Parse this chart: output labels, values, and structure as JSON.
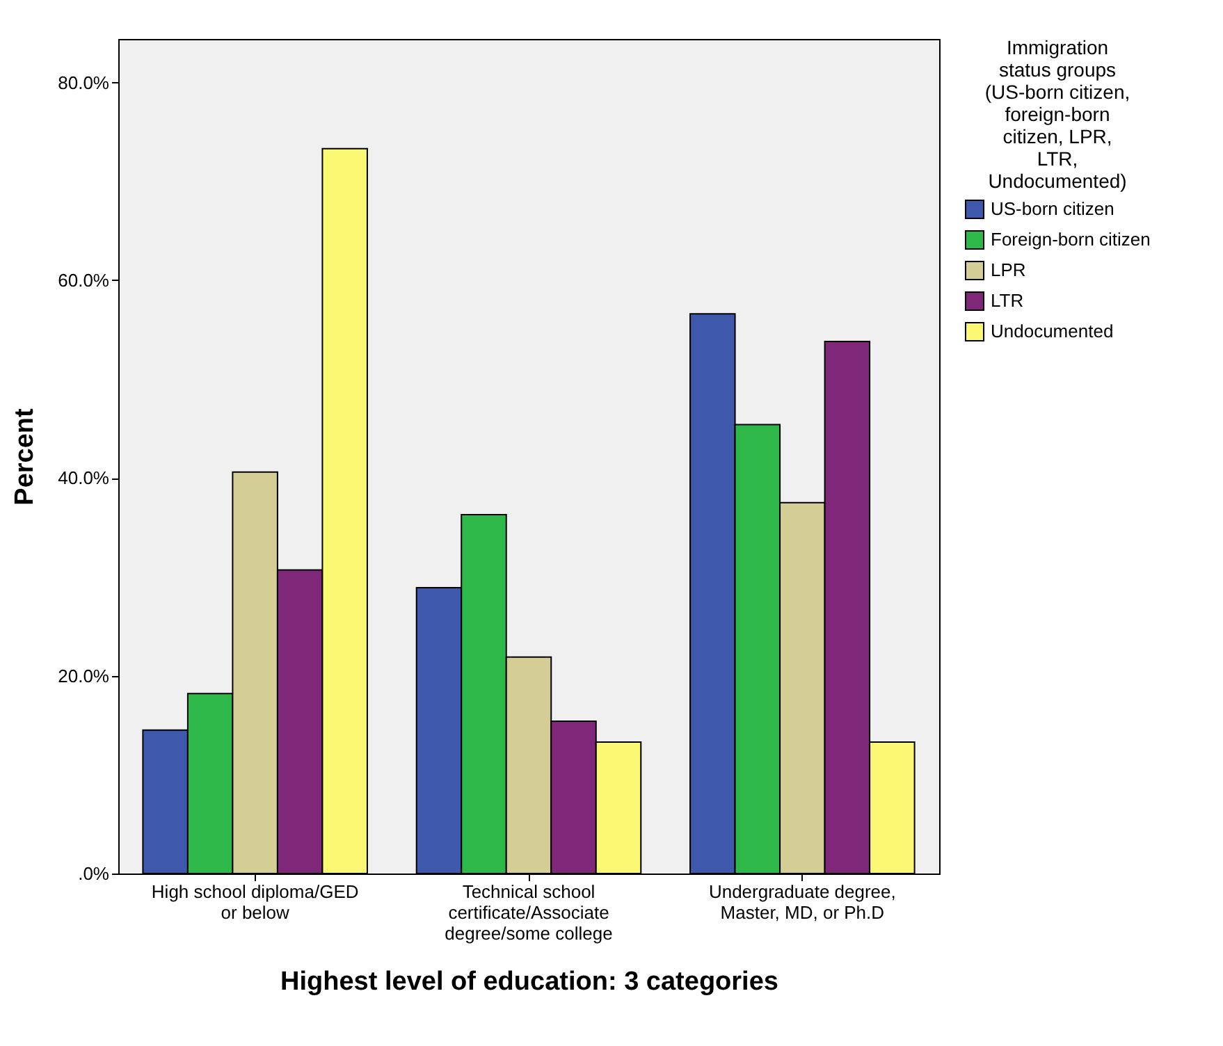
{
  "chart_data": {
    "type": "bar",
    "xlabel": "Highest level of education: 3 categories",
    "ylabel": "Percent",
    "legend_title": "Immigration status groups (US-born citizen, foreign-born citizen, LPR, LTR, Undocumented)",
    "categories": [
      "High school diploma/GED or below",
      "Technical school certificate/Associate degree/some college",
      "Undergraduate degree, Master, MD, or Ph.D"
    ],
    "series": [
      {
        "name": "US-born citizen",
        "color": "#3e58ac",
        "values": [
          14.5,
          28.9,
          56.6
        ]
      },
      {
        "name": "Foreign-born citizen",
        "color": "#2fb84a",
        "values": [
          18.2,
          36.3,
          45.4
        ]
      },
      {
        "name": "LPR",
        "color": "#d4cd96",
        "values": [
          40.6,
          21.9,
          37.5
        ]
      },
      {
        "name": "LTR",
        "color": "#7f2779",
        "values": [
          30.7,
          15.4,
          53.8
        ]
      },
      {
        "name": "Undocumented",
        "color": "#fbf873",
        "values": [
          73.3,
          13.3,
          13.3
        ]
      }
    ],
    "ylim": [
      0,
      84.4
    ],
    "yticks": [
      {
        "value": 0,
        "label": ".0%"
      },
      {
        "value": 20,
        "label": "20.0%"
      },
      {
        "value": 40,
        "label": "40.0%"
      },
      {
        "value": 60,
        "label": "60.0%"
      },
      {
        "value": 80,
        "label": "80.0%"
      }
    ],
    "grid": false,
    "legend": "right"
  }
}
